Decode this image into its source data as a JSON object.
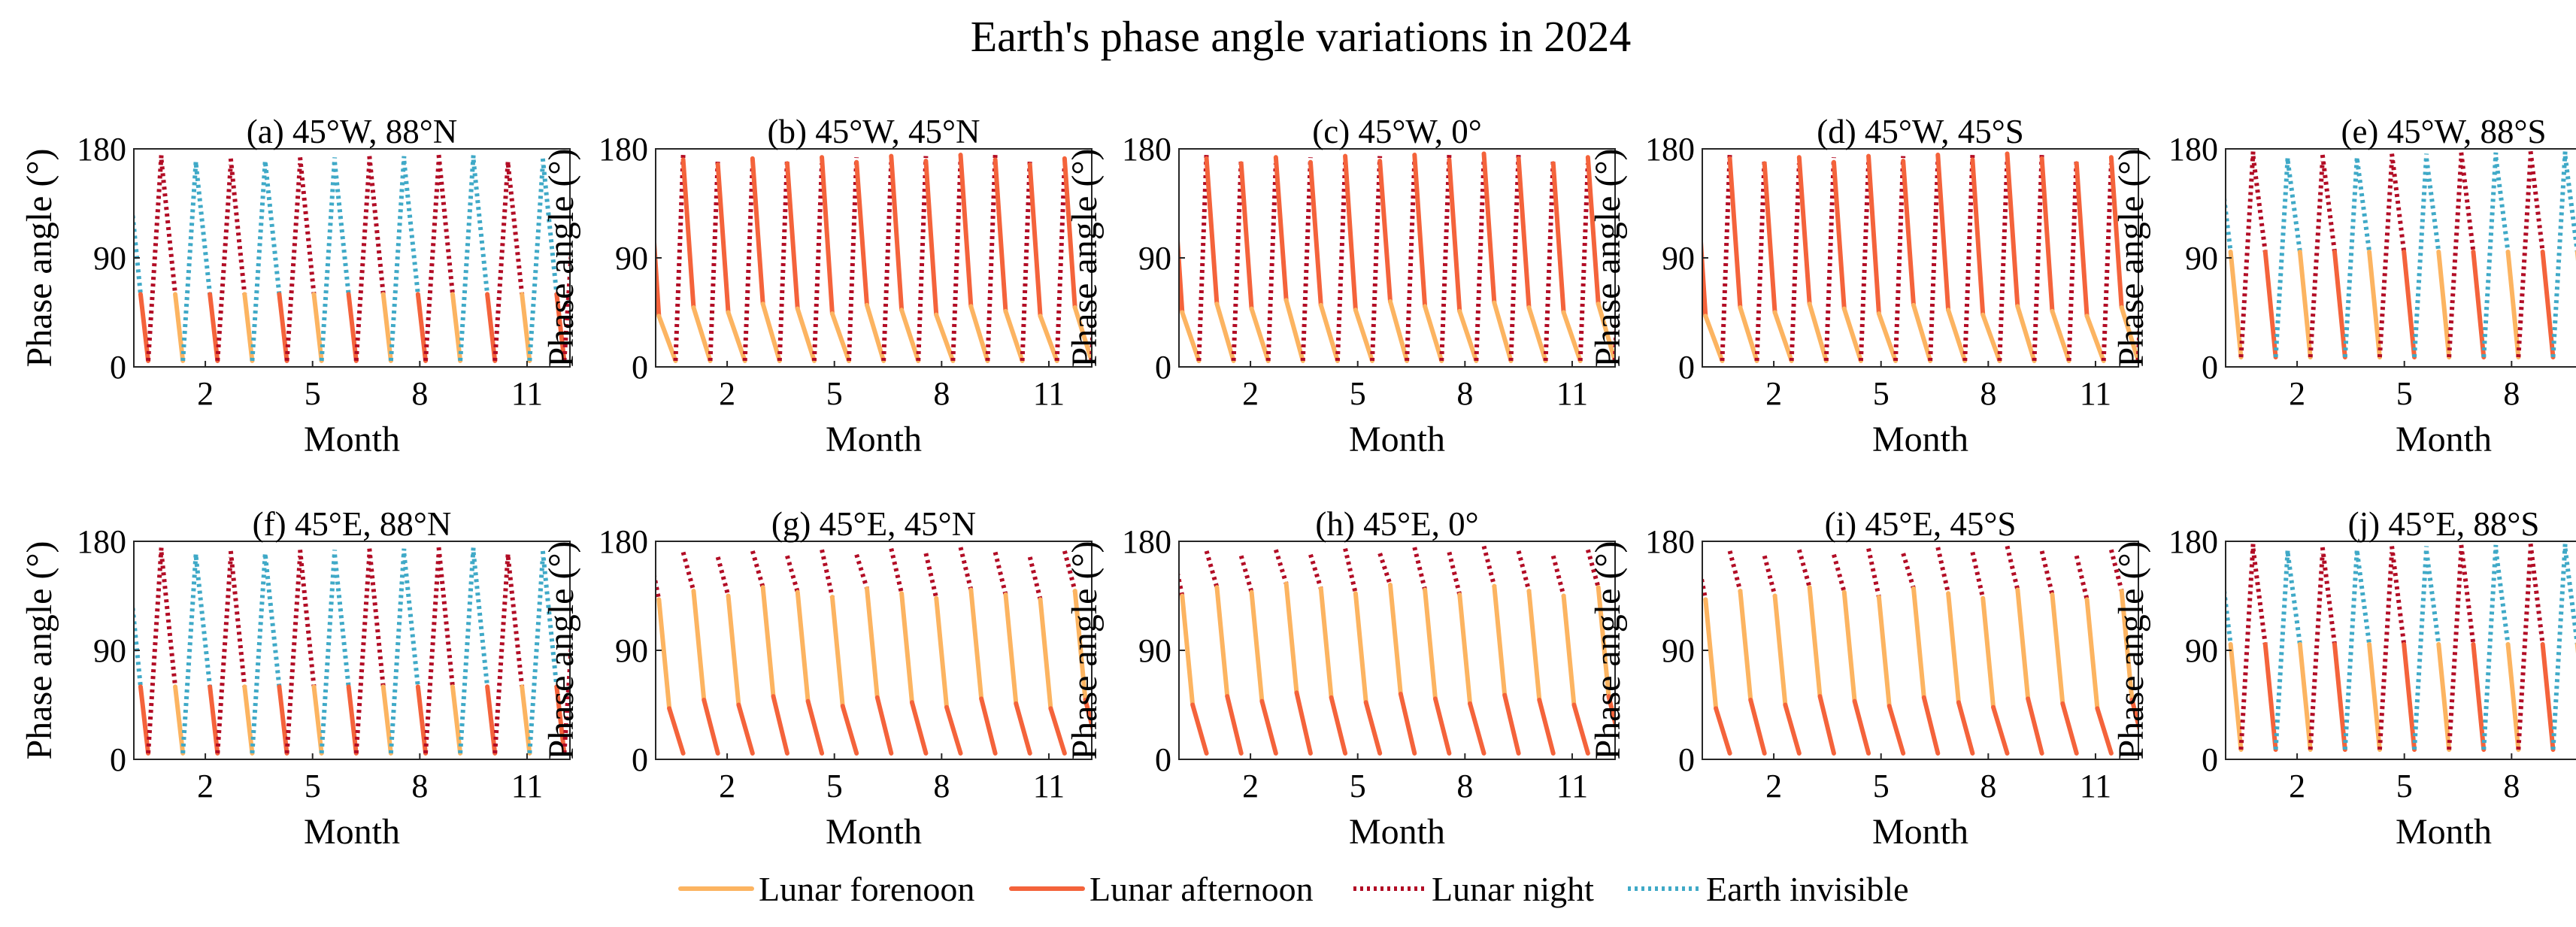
{
  "title": "Earth's phase angle variations in 2024",
  "colors": {
    "forenoon": "#fcb461",
    "afternoon": "#f4633b",
    "night": "#b20c25",
    "invisible": "#3fa9c7"
  },
  "chart_data": {
    "type": "line",
    "xlabel": "Month",
    "ylabel": "Phase angle (°)",
    "ylim": [
      0,
      180
    ],
    "yticks": [
      0,
      90,
      180
    ],
    "xlim": [
      0,
      12.2
    ],
    "xticks": [
      2,
      5,
      8,
      11
    ],
    "cycle_months": 0.97,
    "legend_position": "bottom-center",
    "legend": [
      {
        "name": "Lunar forenoon",
        "style": "solid",
        "color_key": "forenoon"
      },
      {
        "name": "Lunar afternoon",
        "style": "solid",
        "color_key": "afternoon"
      },
      {
        "name": "Lunar night",
        "style": "dotted",
        "color_key": "night"
      },
      {
        "name": "Earth invisible",
        "style": "dotted",
        "color_key": "invisible"
      }
    ],
    "panels": [
      {
        "title": "(a) 45°W, 88°N",
        "row": 0,
        "col": 0,
        "pattern": "polarN",
        "peak": 175,
        "valley": 40
      },
      {
        "title": "(b) 45°W, 45°N",
        "row": 0,
        "col": 1,
        "pattern": "day_pm",
        "peak": 175,
        "valley": 45
      },
      {
        "title": "(c) 45°W, 0°",
        "row": 0,
        "col": 2,
        "pattern": "day_pm",
        "peak": 176,
        "valley": 48
      },
      {
        "title": "(d) 45°W, 45°S",
        "row": 0,
        "col": 3,
        "pattern": "day_pm",
        "peak": 176,
        "valley": 45
      },
      {
        "title": "(e) 45°W, 88°S",
        "row": 0,
        "col": 4,
        "pattern": "polarS",
        "peak": 178,
        "valley": 40
      },
      {
        "title": "(f) 45°E, 88°N",
        "row": 1,
        "col": 0,
        "pattern": "polarN",
        "peak": 175,
        "valley": 40
      },
      {
        "title": "(g) 45°E, 45°N",
        "row": 1,
        "col": 1,
        "pattern": "day_am",
        "peak": 175,
        "valley": 45
      },
      {
        "title": "(h) 45°E, 0°",
        "row": 1,
        "col": 2,
        "pattern": "day_am",
        "peak": 176,
        "valley": 48
      },
      {
        "title": "(i) 45°E, 45°S",
        "row": 1,
        "col": 3,
        "pattern": "day_am",
        "peak": 176,
        "valley": 45
      },
      {
        "title": "(j) 45°E, 88°S",
        "row": 1,
        "col": 4,
        "pattern": "polarS",
        "peak": 178,
        "valley": 40
      }
    ]
  }
}
